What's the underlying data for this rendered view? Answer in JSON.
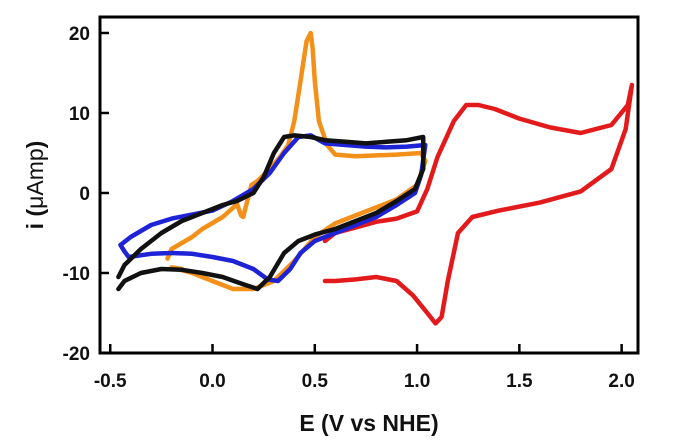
{
  "chart_data": {
    "type": "line",
    "title": "",
    "xlabel": "E (V vs NHE)",
    "ylabel_main": "i (",
    "ylabel_unit": "μAmp",
    "ylabel_close": ")",
    "xlim": [
      -0.55,
      2.08
    ],
    "ylim": [
      -20,
      22
    ],
    "x_ticks": [
      -0.5,
      0.0,
      0.5,
      1.0,
      1.5,
      2.0
    ],
    "x_tick_labels": [
      "-0.5",
      "0.0",
      "0.5",
      "1.0",
      "1.5",
      "2.0"
    ],
    "y_ticks": [
      -20,
      -10,
      0,
      10,
      20
    ],
    "y_tick_labels": [
      "-20",
      "-10",
      "0",
      "10",
      "20"
    ],
    "grid": false,
    "legend": "none",
    "series": [
      {
        "color": "#e31a1c",
        "points": [
          [
            0.55,
            -11
          ],
          [
            0.6,
            -11
          ],
          [
            0.7,
            -10.8
          ],
          [
            0.8,
            -10.5
          ],
          [
            0.9,
            -11
          ],
          [
            0.98,
            -12.8
          ],
          [
            1.05,
            -15
          ],
          [
            1.09,
            -16.3
          ],
          [
            1.12,
            -15.5
          ],
          [
            1.15,
            -11
          ],
          [
            1.2,
            -5
          ],
          [
            1.27,
            -3
          ],
          [
            1.4,
            -2.2
          ],
          [
            1.6,
            -1.2
          ],
          [
            1.8,
            0.2
          ],
          [
            1.95,
            3
          ],
          [
            2.02,
            8
          ],
          [
            2.05,
            13.5
          ],
          [
            2.03,
            11
          ],
          [
            1.95,
            8.5
          ],
          [
            1.8,
            7.5
          ],
          [
            1.65,
            8.2
          ],
          [
            1.5,
            9.3
          ],
          [
            1.38,
            10.5
          ],
          [
            1.3,
            11
          ],
          [
            1.24,
            11
          ],
          [
            1.18,
            9
          ],
          [
            1.1,
            4.5
          ],
          [
            1.05,
            0.5
          ],
          [
            1.0,
            -2.3
          ],
          [
            0.9,
            -3.2
          ],
          [
            0.8,
            -3.6
          ],
          [
            0.7,
            -4.3
          ],
          [
            0.6,
            -5
          ],
          [
            0.55,
            -6
          ]
        ]
      },
      {
        "color": "#f39019",
        "points": [
          [
            -0.15,
            -9.5
          ],
          [
            -0.2,
            -9.3
          ],
          [
            -0.1,
            -10
          ],
          [
            0.0,
            -11
          ],
          [
            0.1,
            -12
          ],
          [
            0.2,
            -12
          ],
          [
            0.3,
            -11
          ],
          [
            0.4,
            -8.5
          ],
          [
            0.5,
            -5.5
          ],
          [
            0.6,
            -3.8
          ],
          [
            0.7,
            -2.8
          ],
          [
            0.8,
            -1.8
          ],
          [
            0.9,
            -0.8
          ],
          [
            1.0,
            1
          ],
          [
            1.04,
            4
          ],
          [
            1.02,
            5
          ],
          [
            0.9,
            4.8
          ],
          [
            0.8,
            4.7
          ],
          [
            0.7,
            4.6
          ],
          [
            0.6,
            4.8
          ],
          [
            0.56,
            6
          ],
          [
            0.52,
            9
          ],
          [
            0.5,
            14
          ],
          [
            0.49,
            18
          ],
          [
            0.48,
            20
          ],
          [
            0.46,
            19
          ],
          [
            0.43,
            14
          ],
          [
            0.4,
            9
          ],
          [
            0.37,
            6
          ],
          [
            0.33,
            4.5
          ],
          [
            0.28,
            3
          ],
          [
            0.22,
            1.5
          ],
          [
            0.19,
            1
          ],
          [
            0.17,
            -1
          ],
          [
            0.16,
            -2
          ],
          [
            0.15,
            -3
          ],
          [
            0.14,
            -2.8
          ],
          [
            0.12,
            -1.4
          ],
          [
            0.05,
            -3
          ],
          [
            -0.05,
            -4.5
          ],
          [
            -0.1,
            -5.5
          ],
          [
            -0.2,
            -7
          ],
          [
            -0.22,
            -8.2
          ]
        ]
      },
      {
        "color": "#1f23d6",
        "points": [
          [
            -0.41,
            -8
          ],
          [
            -0.3,
            -7.6
          ],
          [
            -0.2,
            -7.5
          ],
          [
            -0.1,
            -7.6
          ],
          [
            0.0,
            -8
          ],
          [
            0.1,
            -8.5
          ],
          [
            0.2,
            -9.5
          ],
          [
            0.27,
            -10.8
          ],
          [
            0.32,
            -11
          ],
          [
            0.38,
            -9.5
          ],
          [
            0.43,
            -7.5
          ],
          [
            0.5,
            -6
          ],
          [
            0.6,
            -5
          ],
          [
            0.7,
            -4
          ],
          [
            0.8,
            -3
          ],
          [
            0.9,
            -1.5
          ],
          [
            0.99,
            0
          ],
          [
            1.02,
            2.3
          ],
          [
            1.04,
            6
          ],
          [
            0.95,
            5.8
          ],
          [
            0.85,
            5.7
          ],
          [
            0.75,
            5.8
          ],
          [
            0.65,
            6
          ],
          [
            0.55,
            6.2
          ],
          [
            0.48,
            7.2
          ],
          [
            0.42,
            7
          ],
          [
            0.35,
            5
          ],
          [
            0.28,
            2.5
          ],
          [
            0.2,
            0.5
          ],
          [
            0.1,
            -1
          ],
          [
            0.0,
            -2.2
          ],
          [
            -0.1,
            -2.7
          ],
          [
            -0.2,
            -3.2
          ],
          [
            -0.3,
            -4
          ],
          [
            -0.4,
            -5.5
          ],
          [
            -0.45,
            -6.5
          ],
          [
            -0.43,
            -7.3
          ],
          [
            -0.41,
            -8
          ]
        ]
      },
      {
        "color": "#111111",
        "points": [
          [
            -0.46,
            -12
          ],
          [
            -0.43,
            -11
          ],
          [
            -0.35,
            -10
          ],
          [
            -0.25,
            -9.5
          ],
          [
            -0.15,
            -9.6
          ],
          [
            -0.05,
            -10
          ],
          [
            0.05,
            -10.5
          ],
          [
            0.15,
            -11.4
          ],
          [
            0.22,
            -12
          ],
          [
            0.28,
            -10.5
          ],
          [
            0.35,
            -7.5
          ],
          [
            0.42,
            -6
          ],
          [
            0.5,
            -5.2
          ],
          [
            0.6,
            -4.5
          ],
          [
            0.7,
            -3.5
          ],
          [
            0.8,
            -2.5
          ],
          [
            0.9,
            -1
          ],
          [
            0.99,
            0.5
          ],
          [
            1.03,
            3
          ],
          [
            1.03,
            7
          ],
          [
            0.95,
            6.6
          ],
          [
            0.85,
            6.4
          ],
          [
            0.75,
            6.2
          ],
          [
            0.65,
            6.4
          ],
          [
            0.55,
            6.6
          ],
          [
            0.48,
            7
          ],
          [
            0.4,
            7.2
          ],
          [
            0.35,
            7
          ],
          [
            0.3,
            5
          ],
          [
            0.25,
            2
          ],
          [
            0.2,
            0
          ],
          [
            0.12,
            -1
          ],
          [
            0.05,
            -1.5
          ],
          [
            -0.05,
            -2.5
          ],
          [
            -0.15,
            -3.5
          ],
          [
            -0.25,
            -5
          ],
          [
            -0.35,
            -7
          ],
          [
            -0.43,
            -9
          ],
          [
            -0.46,
            -10.5
          ]
        ]
      }
    ]
  }
}
